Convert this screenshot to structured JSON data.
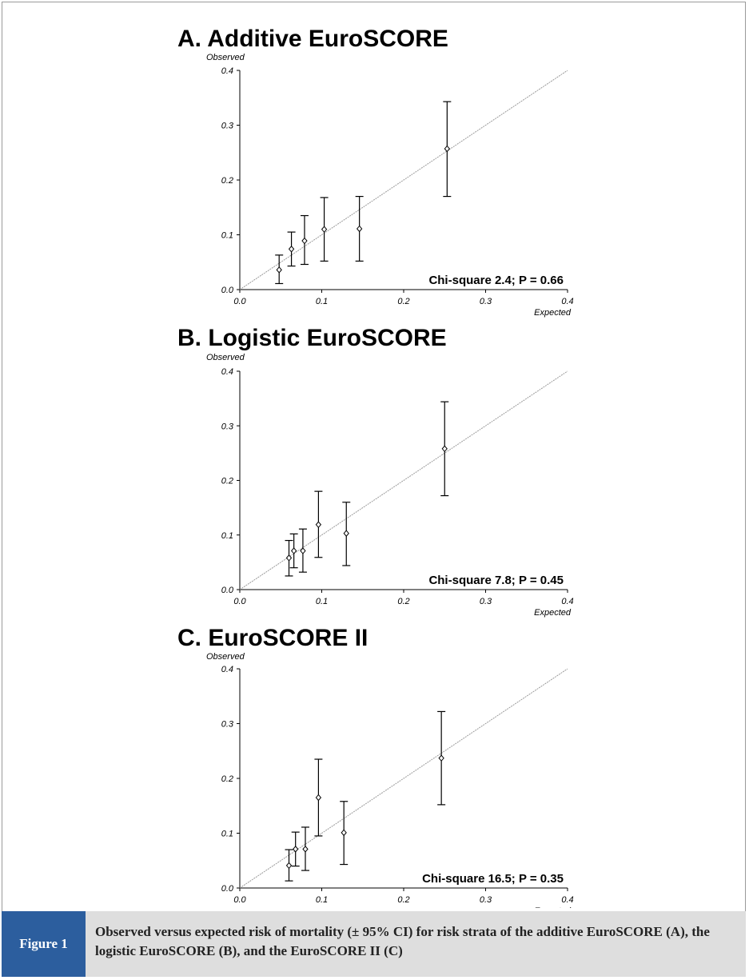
{
  "figure": {
    "label": "Figure 1",
    "caption": "Observed versus expected risk of mortality (± 95% CI) for risk strata of the additive EuroSCORE (A), the logistic EuroSCORE (B), and the EuroSCORE II (C)"
  },
  "colors": {
    "figure_label_bg": "#2c5e9e",
    "caption_bg": "#dedede",
    "diagonal": "#9a9a9a",
    "marks": "#000000"
  },
  "chart_data": [
    {
      "type": "scatter",
      "title": "A. Additive EuroSCORE",
      "xlabel": "Expected",
      "ylabel": "Observed",
      "xlim": [
        0.0,
        0.4
      ],
      "ylim": [
        0.0,
        0.4
      ],
      "xticks": [
        "0.0",
        "0.1",
        "0.2",
        "0.3",
        "0.4"
      ],
      "yticks": [
        "0.0",
        "0.1",
        "0.2",
        "0.3",
        "0.4"
      ],
      "reference_line": "y = x",
      "annotation": "Chi-square 2.4; P = 0.66",
      "points": [
        {
          "x": 0.048,
          "y": 0.036,
          "lo": 0.011,
          "hi": 0.063
        },
        {
          "x": 0.063,
          "y": 0.074,
          "lo": 0.043,
          "hi": 0.105
        },
        {
          "x": 0.079,
          "y": 0.089,
          "lo": 0.046,
          "hi": 0.135
        },
        {
          "x": 0.103,
          "y": 0.11,
          "lo": 0.052,
          "hi": 0.168
        },
        {
          "x": 0.146,
          "y": 0.111,
          "lo": 0.052,
          "hi": 0.17
        },
        {
          "x": 0.253,
          "y": 0.257,
          "lo": 0.17,
          "hi": 0.343
        }
      ]
    },
    {
      "type": "scatter",
      "title": "B. Logistic EuroSCORE",
      "xlabel": "Expected",
      "ylabel": "Observed",
      "xlim": [
        0.0,
        0.4
      ],
      "ylim": [
        0.0,
        0.4
      ],
      "xticks": [
        "0.0",
        "0.1",
        "0.2",
        "0.3",
        "0.4"
      ],
      "yticks": [
        "0.0",
        "0.1",
        "0.2",
        "0.3",
        "0.4"
      ],
      "reference_line": "y = x",
      "annotation": "Chi-square 7.8; P = 0.45",
      "points": [
        {
          "x": 0.06,
          "y": 0.058,
          "lo": 0.025,
          "hi": 0.09
        },
        {
          "x": 0.066,
          "y": 0.071,
          "lo": 0.04,
          "hi": 0.102
        },
        {
          "x": 0.077,
          "y": 0.071,
          "lo": 0.032,
          "hi": 0.111
        },
        {
          "x": 0.096,
          "y": 0.119,
          "lo": 0.059,
          "hi": 0.18
        },
        {
          "x": 0.13,
          "y": 0.103,
          "lo": 0.044,
          "hi": 0.16
        },
        {
          "x": 0.25,
          "y": 0.258,
          "lo": 0.172,
          "hi": 0.344
        }
      ]
    },
    {
      "type": "scatter",
      "title": "C. EuroSCORE II",
      "xlabel": "Expected",
      "ylabel": "Observed",
      "xlim": [
        0.0,
        0.4
      ],
      "ylim": [
        0.0,
        0.4
      ],
      "xticks": [
        "0.0",
        "0.1",
        "0.2",
        "0.3",
        "0.4"
      ],
      "yticks": [
        "0.0",
        "0.1",
        "0.2",
        "0.3",
        "0.4"
      ],
      "reference_line": "y = x",
      "annotation": "Chi-square 16.5; P = 0.35",
      "points": [
        {
          "x": 0.06,
          "y": 0.041,
          "lo": 0.013,
          "hi": 0.07
        },
        {
          "x": 0.068,
          "y": 0.071,
          "lo": 0.04,
          "hi": 0.102
        },
        {
          "x": 0.08,
          "y": 0.071,
          "lo": 0.032,
          "hi": 0.111
        },
        {
          "x": 0.096,
          "y": 0.165,
          "lo": 0.095,
          "hi": 0.235
        },
        {
          "x": 0.127,
          "y": 0.101,
          "lo": 0.043,
          "hi": 0.158
        },
        {
          "x": 0.246,
          "y": 0.237,
          "lo": 0.152,
          "hi": 0.322
        }
      ]
    }
  ]
}
